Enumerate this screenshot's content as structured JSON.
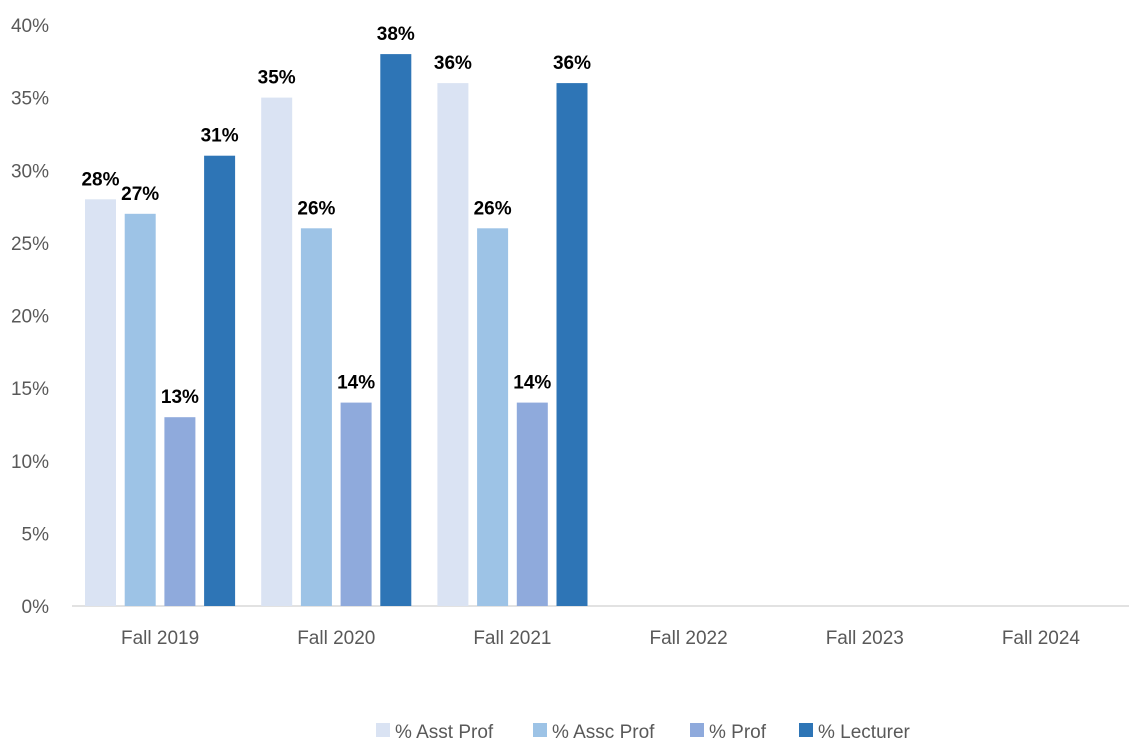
{
  "chart_data": {
    "type": "bar",
    "categories": [
      "Fall 2019",
      "Fall 2020",
      "Fall 2021",
      "Fall 2022",
      "Fall 2023",
      "Fall 2024"
    ],
    "series": [
      {
        "name": "% Asst Prof",
        "color": "#dae3f3",
        "values": [
          28,
          35,
          36,
          null,
          null,
          null
        ],
        "labels": [
          "28%",
          "35%",
          "36%",
          "",
          "",
          ""
        ]
      },
      {
        "name": "% Assc Prof",
        "color": "#9dc3e6",
        "values": [
          27,
          26,
          26,
          null,
          null,
          null
        ],
        "labels": [
          "27%",
          "26%",
          "26%",
          "",
          "",
          ""
        ]
      },
      {
        "name": "% Prof",
        "color": "#8faadc",
        "values": [
          13,
          14,
          14,
          null,
          null,
          null
        ],
        "labels": [
          "13%",
          "14%",
          "14%",
          "",
          "",
          ""
        ]
      },
      {
        "name": "% Lecturer",
        "color": "#2e75b6",
        "values": [
          31,
          38,
          36,
          null,
          null,
          null
        ],
        "labels": [
          "31%",
          "38%",
          "36%",
          "",
          "",
          ""
        ]
      }
    ],
    "y_ticks": [
      "0%",
      "5%",
      "10%",
      "15%",
      "20%",
      "25%",
      "30%",
      "35%",
      "40%"
    ],
    "ylim": [
      0,
      40
    ],
    "grid": false,
    "legend_position": "bottom",
    "title": "",
    "xlabel": "",
    "ylabel": ""
  }
}
